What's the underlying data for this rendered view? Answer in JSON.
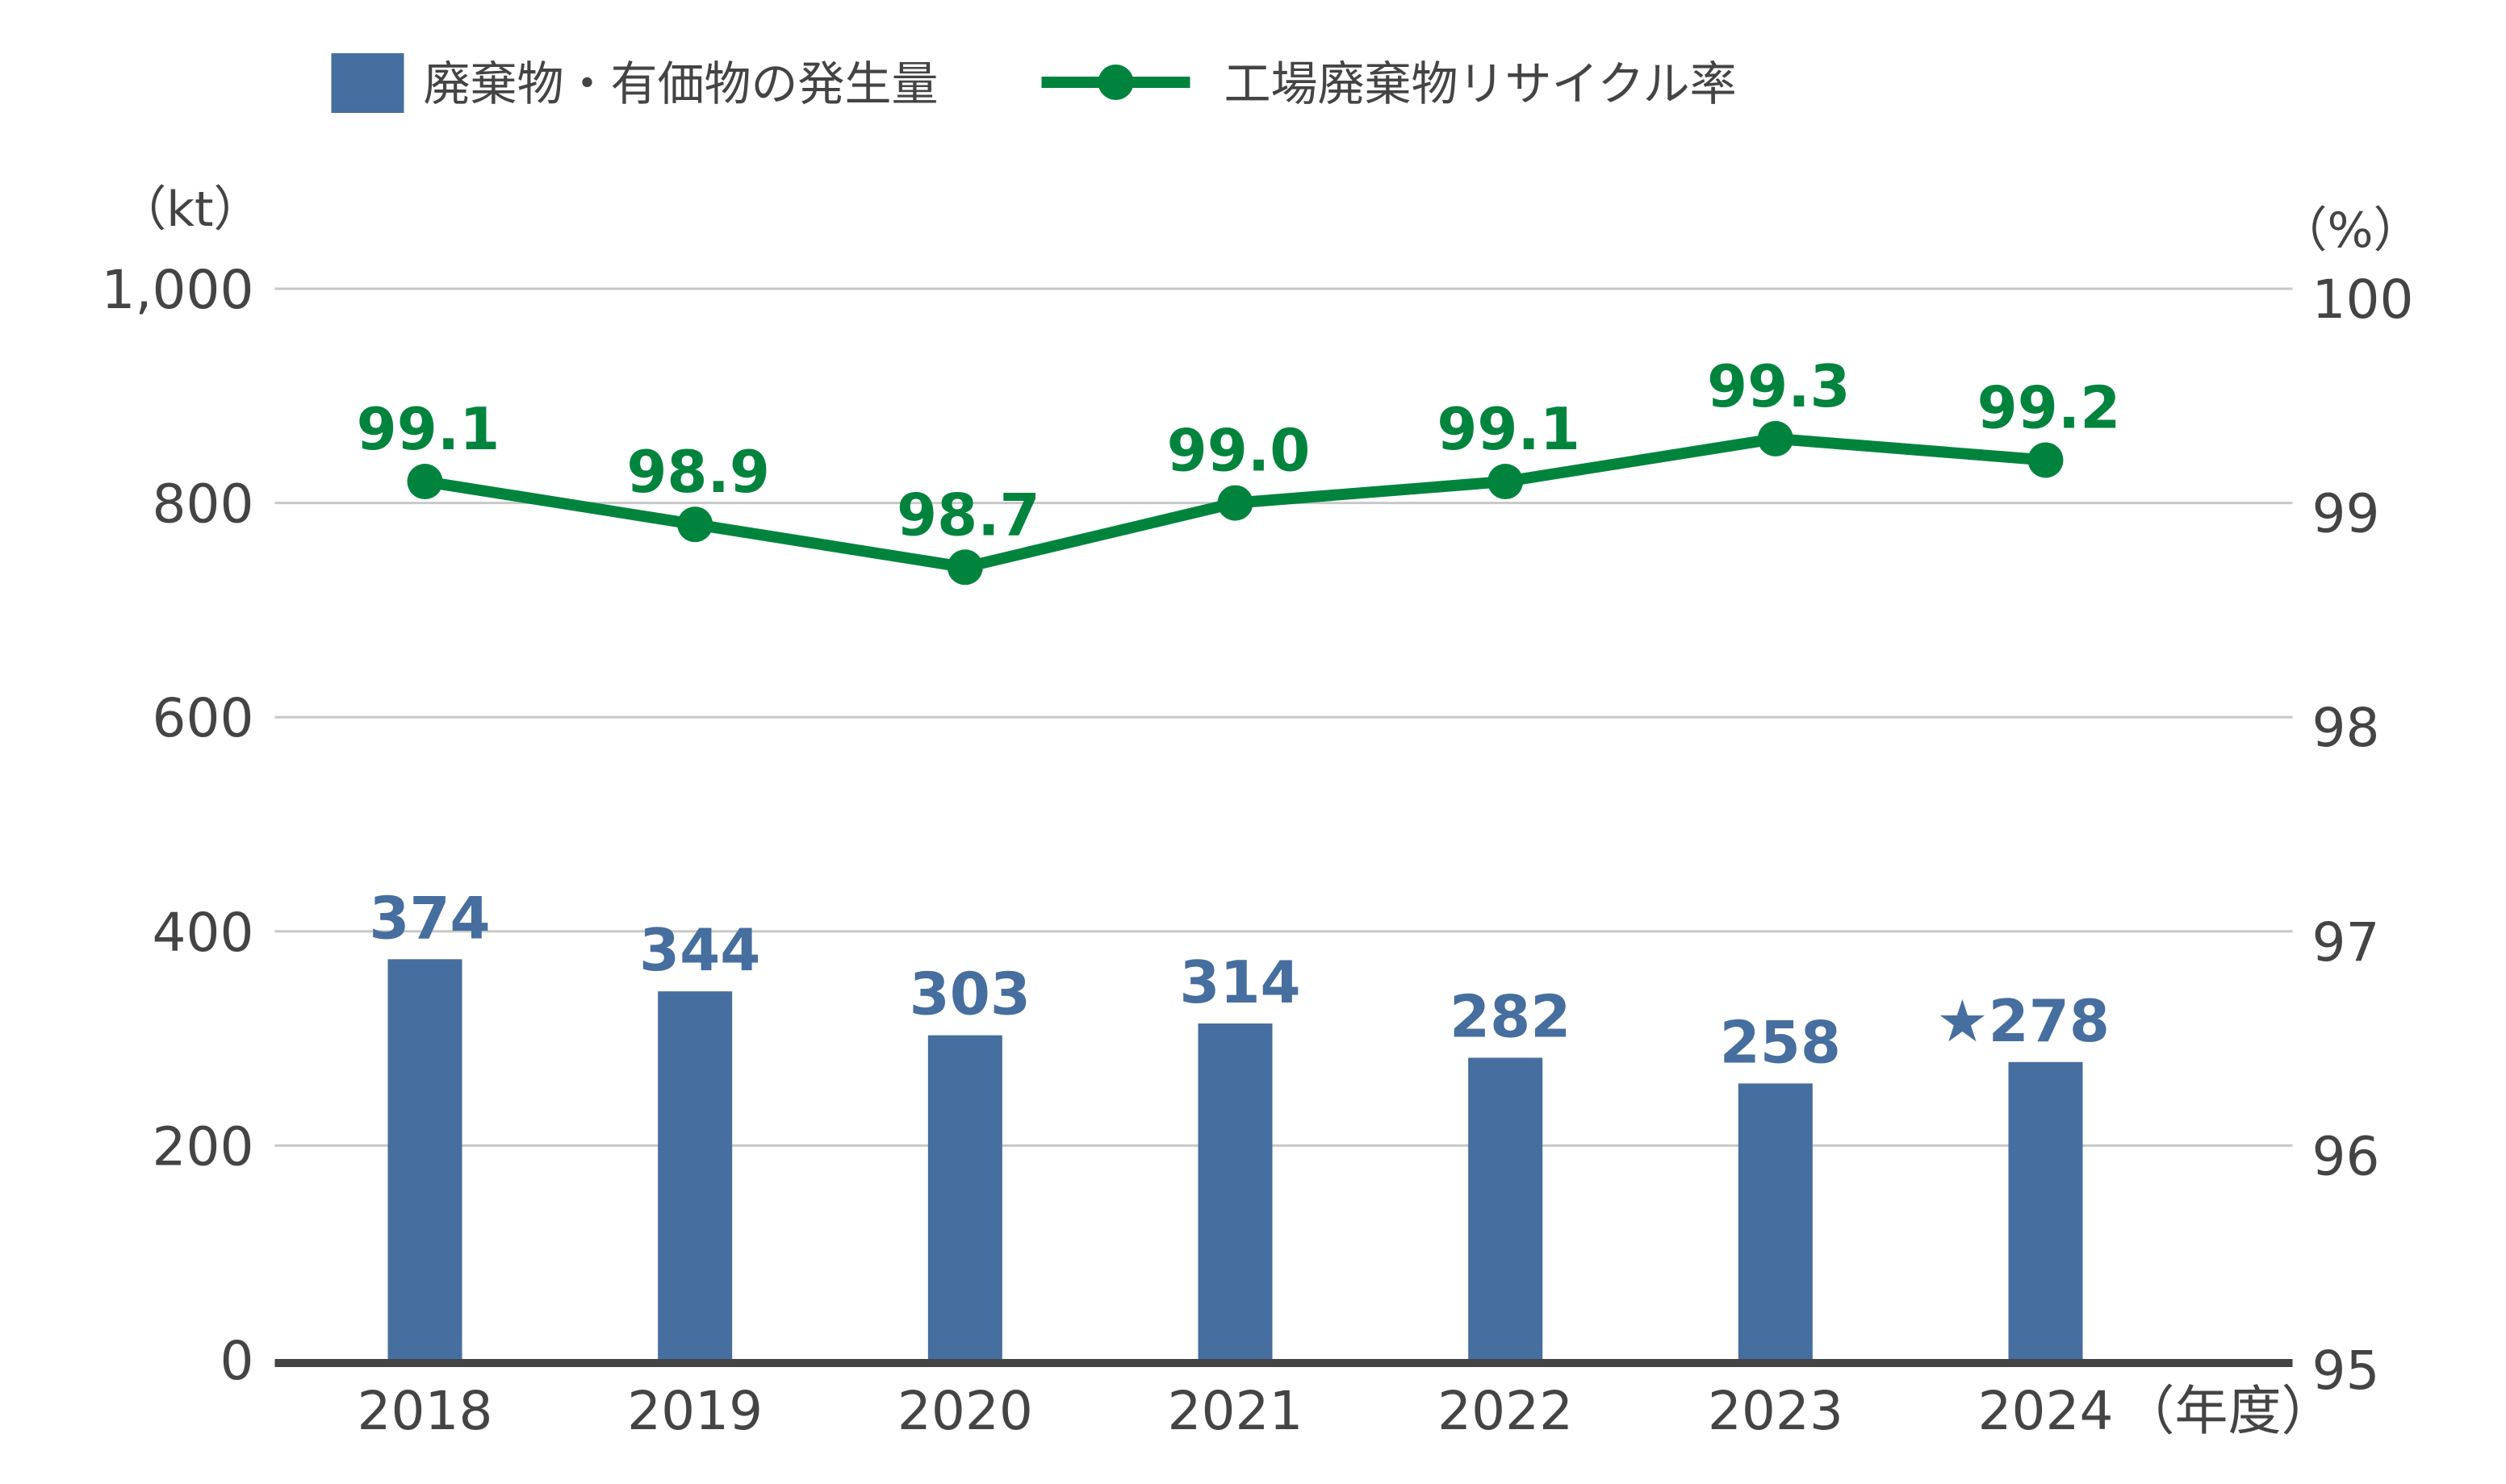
{
  "chart_data": {
    "type": "bar+line",
    "categories": [
      "2018",
      "2019",
      "2020",
      "2021",
      "2022",
      "2023",
      "2024"
    ],
    "x_suffix": "（年度）",
    "series": [
      {
        "name": "廃棄物・有価物の発生量",
        "type": "bar",
        "axis": "left",
        "color": "#466e9f",
        "values": [
          374,
          344,
          303,
          314,
          282,
          258,
          278
        ],
        "labels": [
          "374",
          "344",
          "303",
          "314",
          "282",
          "258",
          "★278"
        ]
      },
      {
        "name": "工場廃棄物リサイクル率",
        "type": "line",
        "axis": "right",
        "color": "#00843d",
        "values": [
          99.1,
          98.9,
          98.7,
          99.0,
          99.1,
          99.3,
          99.2
        ],
        "labels": [
          "99.1",
          "98.9",
          "98.7",
          "99.0",
          "99.1",
          "99.3",
          "99.2"
        ]
      }
    ],
    "left_axis": {
      "unit": "（kt）",
      "range": [
        0,
        1000
      ],
      "ticks": [
        "0",
        "200",
        "400",
        "600",
        "800",
        "1,000"
      ]
    },
    "right_axis": {
      "unit": "（%）",
      "range": [
        95,
        100
      ],
      "ticks": [
        "95",
        "96",
        "97",
        "98",
        "99",
        "100"
      ]
    },
    "grid": true,
    "legend": "top-left"
  }
}
